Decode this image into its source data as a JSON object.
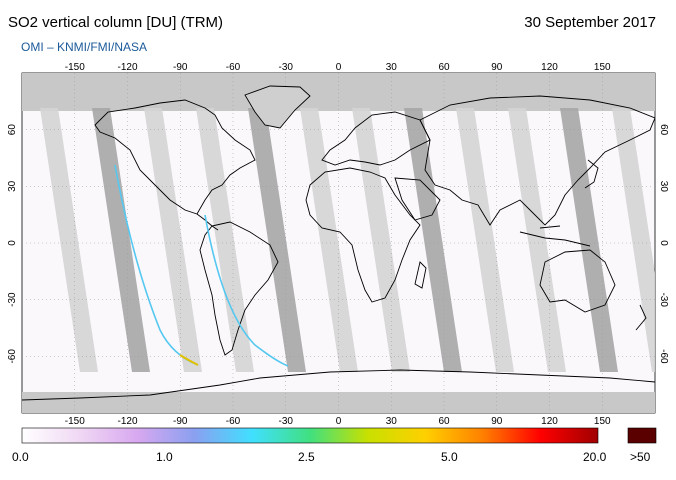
{
  "header": {
    "title": "SO2 vertical column [DU] (TRM)",
    "date": "30 September 2017",
    "credit": "OMI  –  KNMI/FMI/NASA"
  },
  "map": {
    "lon_ticks": [
      "-150",
      "-120",
      "-90",
      "-60",
      "-30",
      "0",
      "30",
      "60",
      "90",
      "120",
      "150"
    ],
    "lat_ticks": [
      "60",
      "30",
      "0",
      "-30",
      "-60"
    ],
    "colors": {
      "land_shade": "#cfcfcf",
      "swath_dark": "#a6a6a6",
      "swath_light": "#d4d4d4",
      "coast": "#000000"
    }
  },
  "colorbar": {
    "labels": [
      "0.0",
      "1.0",
      "2.5",
      "5.0",
      "20.0",
      ">50"
    ],
    "gradient": [
      "#ffffff",
      "#f0d8f4",
      "#d8a8f0",
      "#8aa0f0",
      "#40e0ff",
      "#40e080",
      "#c8e000",
      "#ffd000",
      "#ff8000",
      "#ff0000",
      "#a00000"
    ],
    "overflow_color": "#5a0000"
  }
}
